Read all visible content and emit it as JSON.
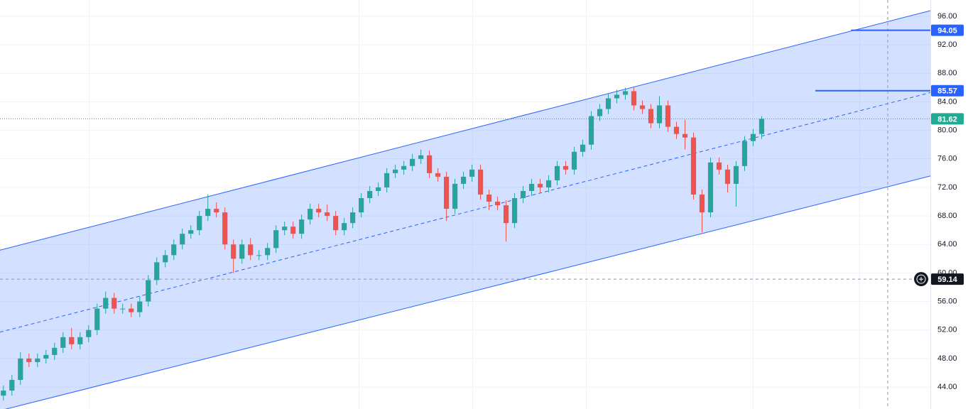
{
  "chart_data": {
    "type": "candlestick",
    "up_color": "#26a69a",
    "down_color": "#ef5350",
    "xlim": [
      -0.4,
      108.8
    ],
    "ylim": [
      40.92,
      98.29
    ],
    "yticks": [
      {
        "value": 44,
        "label": "44.00"
      },
      {
        "value": 48,
        "label": "48.00"
      },
      {
        "value": 52,
        "label": "52.00"
      },
      {
        "value": 56,
        "label": "56.00"
      },
      {
        "value": 60,
        "label": "60.00"
      },
      {
        "value": 64,
        "label": "64.00"
      },
      {
        "value": 68,
        "label": "68.00"
      },
      {
        "value": 72,
        "label": "72.00"
      },
      {
        "value": 76,
        "label": "76.00"
      },
      {
        "value": 80,
        "label": "80.00"
      },
      {
        "value": 84,
        "label": "84.00"
      },
      {
        "value": 88,
        "label": "88.00"
      },
      {
        "value": 92,
        "label": "92.00"
      },
      {
        "value": 96,
        "label": "96.00"
      }
    ],
    "grid": true,
    "open": [
      42.8,
      43.5,
      45,
      48,
      47.5,
      48,
      48.5,
      49.5,
      51,
      50,
      51,
      52,
      55,
      56.5,
      55,
      55,
      54.5,
      56,
      59,
      61.5,
      62.5,
      64,
      65.5,
      66,
      68,
      69,
      68.5,
      64,
      62,
      64,
      62.5,
      62.5,
      63.5,
      66,
      66.5,
      65.5,
      67.5,
      69,
      68.5,
      68,
      66,
      67,
      68.5,
      70.5,
      71.5,
      72,
      74,
      74.5,
      75,
      76,
      76.5,
      74,
      73.5,
      69,
      72.5,
      73.5,
      74.5,
      71,
      70,
      69.5,
      67,
      70.5,
      71.5,
      72.5,
      72,
      73,
      75,
      74.5,
      77,
      78,
      82,
      83,
      84.5,
      85,
      85.5,
      83.5,
      83,
      81,
      83.5,
      80.5,
      79.5,
      79,
      71,
      68.5,
      75.5,
      74.5,
      72.5,
      75,
      78.5,
      79.5
    ],
    "high": [
      44.2,
      45.7,
      48.9,
      48.7,
      48.7,
      49.2,
      50.2,
      51.7,
      52.3,
      51.7,
      52.7,
      55.7,
      57.4,
      57.2,
      55.7,
      55.7,
      56.7,
      59.7,
      62.2,
      63.2,
      64.7,
      66.2,
      66.7,
      68.7,
      71.0,
      69.9,
      69.2,
      64.7,
      64.7,
      64.9,
      63.2,
      64.2,
      66.7,
      67.2,
      67.2,
      68.2,
      69.7,
      69.7,
      69.6,
      68.7,
      67.7,
      69.2,
      71.2,
      72.2,
      72.7,
      74.7,
      75.2,
      75.7,
      76.7,
      77.3,
      77.2,
      74.7,
      74.2,
      73.2,
      74.2,
      75.2,
      75.2,
      71.7,
      70.7,
      70.2,
      71.2,
      72.2,
      73.2,
      73.2,
      73.7,
      75.7,
      75.7,
      77.7,
      78.7,
      82.7,
      83.7,
      85.2,
      85.7,
      86.0,
      86.0,
      84.2,
      83.7,
      84.8,
      84.2,
      81.2,
      81.5,
      79.7,
      71.7,
      76.2,
      76.2,
      75.2,
      75.7,
      79.2,
      80.2,
      82.0
    ],
    "low": [
      42.1,
      42.8,
      44.3,
      46.8,
      46.8,
      47.3,
      47.8,
      48.8,
      49.3,
      49.3,
      50.3,
      51.3,
      54.3,
      54.3,
      54.3,
      53.8,
      53.8,
      55.3,
      58.3,
      60.8,
      61.8,
      63.3,
      64.8,
      65.3,
      67.3,
      67.8,
      63.3,
      60.0,
      61.3,
      61.8,
      61.8,
      61.8,
      62.8,
      65.3,
      64.8,
      64.8,
      66.8,
      67.8,
      67.3,
      65.3,
      65.3,
      66.3,
      67.8,
      69.8,
      70.8,
      71.3,
      73.3,
      73.8,
      74.3,
      75.3,
      73.3,
      72.8,
      67.3,
      68.3,
      71.8,
      72.8,
      70.3,
      68.8,
      68.8,
      64.4,
      66.3,
      69.8,
      70.8,
      71.3,
      71.3,
      72.3,
      73.8,
      73.8,
      76.3,
      77.3,
      81.3,
      82.3,
      83.8,
      84.3,
      82.8,
      82.3,
      80.3,
      80.3,
      79.8,
      78.8,
      77.3,
      70.3,
      65.7,
      67.8,
      73.8,
      71.3,
      69.3,
      74.3,
      77.8,
      78.8
    ],
    "close": [
      43.5,
      45,
      48,
      47.5,
      48,
      48.5,
      49.5,
      51,
      50,
      51,
      52,
      55,
      56.5,
      55,
      55,
      54.5,
      56,
      59,
      61.5,
      62.5,
      64,
      65.5,
      66,
      68,
      69,
      68.5,
      64,
      62,
      64,
      62.5,
      62.5,
      63.5,
      66,
      66.5,
      65.5,
      67.5,
      69,
      68.5,
      68,
      66,
      67,
      68.5,
      70.5,
      71.5,
      72,
      74,
      74.5,
      75,
      76,
      76.5,
      74,
      73.5,
      69,
      72.5,
      73.5,
      74.5,
      71,
      70,
      69.5,
      67,
      70.5,
      71.5,
      72.5,
      72,
      73,
      75,
      74.5,
      77,
      78,
      82,
      83,
      84.5,
      85,
      85.5,
      83.5,
      83,
      81,
      83.5,
      80.5,
      79.5,
      79,
      71,
      68.5,
      75.5,
      74.5,
      72.5,
      75,
      78.5,
      79.5,
      81.62
    ],
    "channel": {
      "color": "#2962ff",
      "upper": [
        63.2,
        96.8
      ],
      "middle": [
        51.7,
        85.3
      ],
      "lower": [
        40.7,
        73.6
      ]
    },
    "horizontal_lines": [
      {
        "value": 94.05,
        "start": 99.5,
        "color": "#2962ff"
      },
      {
        "value": 85.57,
        "start": 95.3,
        "color": "#2962ff"
      }
    ],
    "last_price": {
      "value": 81.62,
      "color": "#22ab94"
    },
    "crosshair": {
      "x": 103.8,
      "y": 59.14,
      "color": "#131722"
    }
  }
}
